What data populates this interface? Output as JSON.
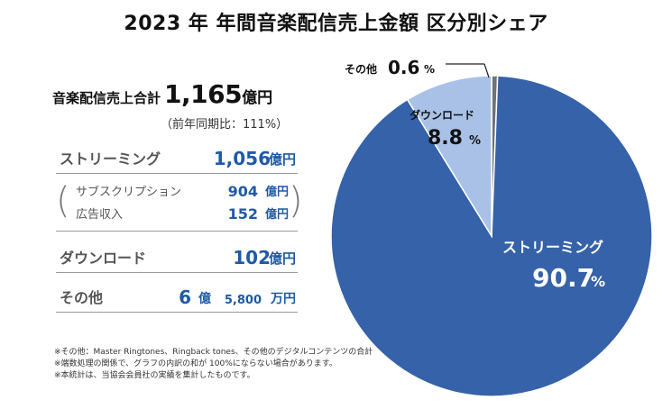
{
  "chart_data": {
    "type": "pie",
    "title": "2023 年 年間音楽配信売上金額 区分別シェア",
    "categories": [
      "ストリーミング",
      "ダウンロード",
      "その他"
    ],
    "values": [
      90.7,
      8.8,
      0.6
    ],
    "colors": [
      "#3562a8",
      "#a9c1e6",
      "#6f7378"
    ],
    "unit": "%"
  },
  "summary": {
    "total_label": "音楽配信売上合計",
    "total_value": "1,165",
    "total_unit": "億円",
    "yoy": "（前年同期比：111%）"
  },
  "breakdown": {
    "streaming": {
      "label": "ストリーミング",
      "value": "1,056",
      "unit": "億円"
    },
    "subscription": {
      "label": "サブスクリプション",
      "value": "904",
      "unit": "億円"
    },
    "ad": {
      "label": "広告収入",
      "value": "152",
      "unit": "億円"
    },
    "download": {
      "label": "ダウンロード",
      "value": "102",
      "unit": "億円"
    },
    "other": {
      "label": "その他",
      "value": "6",
      "oku": "億",
      "man_value": "5,800",
      "man_unit": "万円"
    }
  },
  "pie_labels": {
    "streaming": {
      "name": "ストリーミング",
      "value": "90.7",
      "unit": "%"
    },
    "download": {
      "name": "ダウンロード",
      "value": "8.8",
      "unit": "%"
    },
    "other": {
      "name": "その他",
      "value": "0.6",
      "unit": "%"
    }
  },
  "notes": [
    "※その他：Master Ringtones、Ringback tones、その他のデジタルコンテンツの合計",
    "※端数処理の関係で、グラフの内訳の和が 100%にならない場合があります。",
    "※本統計は、当協会会員社の実績を集計したものです。"
  ]
}
